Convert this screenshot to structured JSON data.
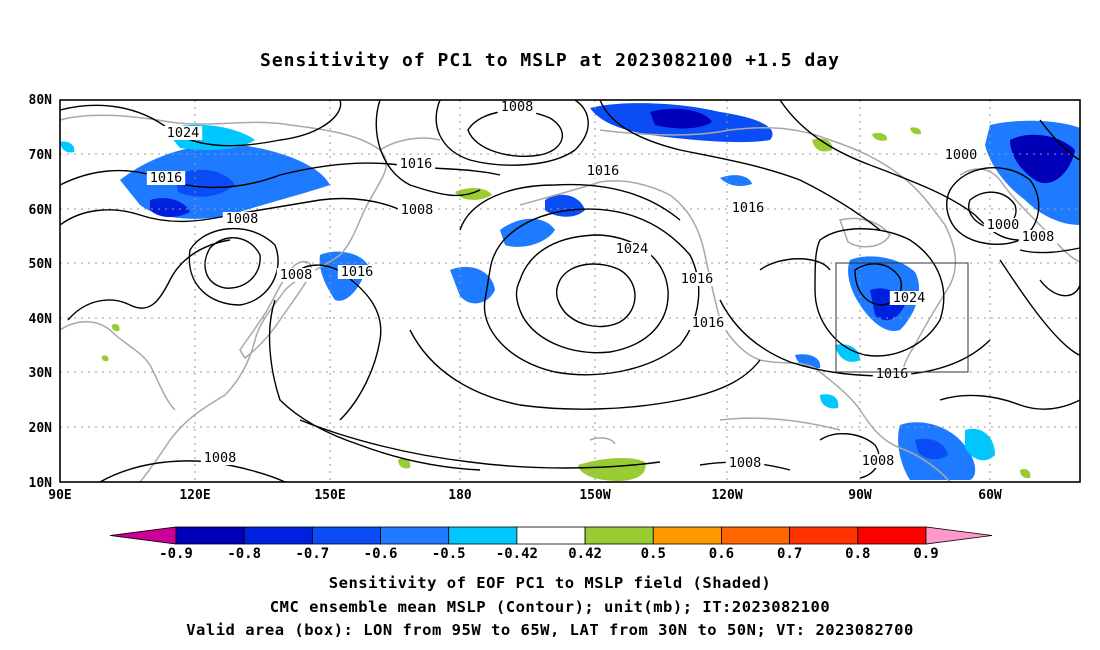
{
  "title": "Sensitivity of PC1 to MSLP at 2023082100 +1.5 day",
  "map": {
    "lat_labels": [
      "80N",
      "70N",
      "60N",
      "50N",
      "40N",
      "30N",
      "20N",
      "10N"
    ],
    "lon_labels": [
      "90E",
      "120E",
      "150E",
      "180",
      "150W",
      "120W",
      "90W",
      "60W"
    ],
    "contour_labels": [
      {
        "text": "1024"
      },
      {
        "text": "1016"
      },
      {
        "text": "1008"
      },
      {
        "text": "1008"
      },
      {
        "text": "1016"
      },
      {
        "text": "1008"
      },
      {
        "text": "1008"
      },
      {
        "text": "1016"
      },
      {
        "text": "1016"
      },
      {
        "text": "1024"
      },
      {
        "text": "1016"
      },
      {
        "text": "1016"
      },
      {
        "text": "1016"
      },
      {
        "text": "1000"
      },
      {
        "text": "1000"
      },
      {
        "text": "1008"
      },
      {
        "text": "1024"
      },
      {
        "text": "1016"
      },
      {
        "text": "1008"
      },
      {
        "text": "1008"
      },
      {
        "text": "1008"
      }
    ],
    "box_region": {
      "lon_from": "95W",
      "lon_to": "65W",
      "lat_from": "30N",
      "lat_to": "50N"
    },
    "colors": {
      "negative_shading": "#1e63ff",
      "positive_shading": "#9acd32",
      "coastline": "#a8a8a8",
      "contour": "#000000"
    }
  },
  "colorbar": {
    "labels": [
      "-0.9",
      "-0.8",
      "-0.7",
      "-0.6",
      "-0.5",
      "-0.42",
      "0.42",
      "0.5",
      "0.6",
      "0.7",
      "0.8",
      "0.9"
    ],
    "colors": [
      "#cc0099",
      "#0000b8",
      "#0020e0",
      "#0a4cf5",
      "#1e7bff",
      "#00c8ff",
      "#ffffff",
      "#99cc33",
      "#ff9900",
      "#ff6600",
      "#ff3300",
      "#ff0000",
      "#ff99cc"
    ]
  },
  "captions": {
    "line1": "Sensitivity of EOF PC1 to MSLP field (Shaded)",
    "line2": "CMC ensemble mean MSLP (Contour); unit(mb); IT:2023082100",
    "line3": "Valid area (box): LON from 95W to 65W, LAT from 30N to 50N; VT: 2023082700"
  }
}
